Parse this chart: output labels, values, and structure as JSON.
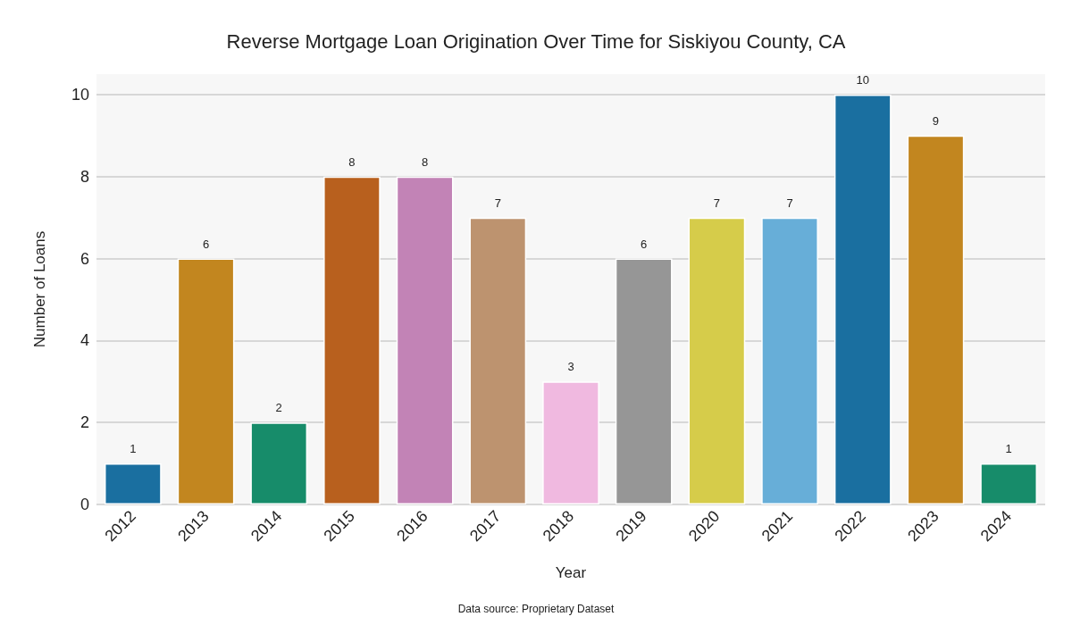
{
  "chart_data": {
    "type": "bar",
    "title": "Reverse Mortgage Loan Origination Over Time for Siskiyou County, CA",
    "xlabel": "Year",
    "ylabel": "Number of Loans",
    "categories": [
      "2012",
      "2013",
      "2014",
      "2015",
      "2016",
      "2017",
      "2018",
      "2019",
      "2020",
      "2021",
      "2022",
      "2023",
      "2024"
    ],
    "values": [
      1,
      6,
      2,
      8,
      8,
      7,
      3,
      6,
      7,
      7,
      10,
      9,
      1
    ],
    "colors": [
      "#1a6fa0",
      "#c2861f",
      "#178c6a",
      "#b8601e",
      "#c283b6",
      "#bd936f",
      "#f0b9e0",
      "#969696",
      "#d6cc4a",
      "#67aed8",
      "#1a6fa0",
      "#c2861f",
      "#178c6a"
    ],
    "ylim": [
      0,
      10.5
    ],
    "yticks": [
      0,
      2,
      4,
      6,
      8,
      10
    ],
    "grid": "y",
    "data_labels": true,
    "annotations": [
      "Data source: Proprietary Dataset"
    ]
  }
}
